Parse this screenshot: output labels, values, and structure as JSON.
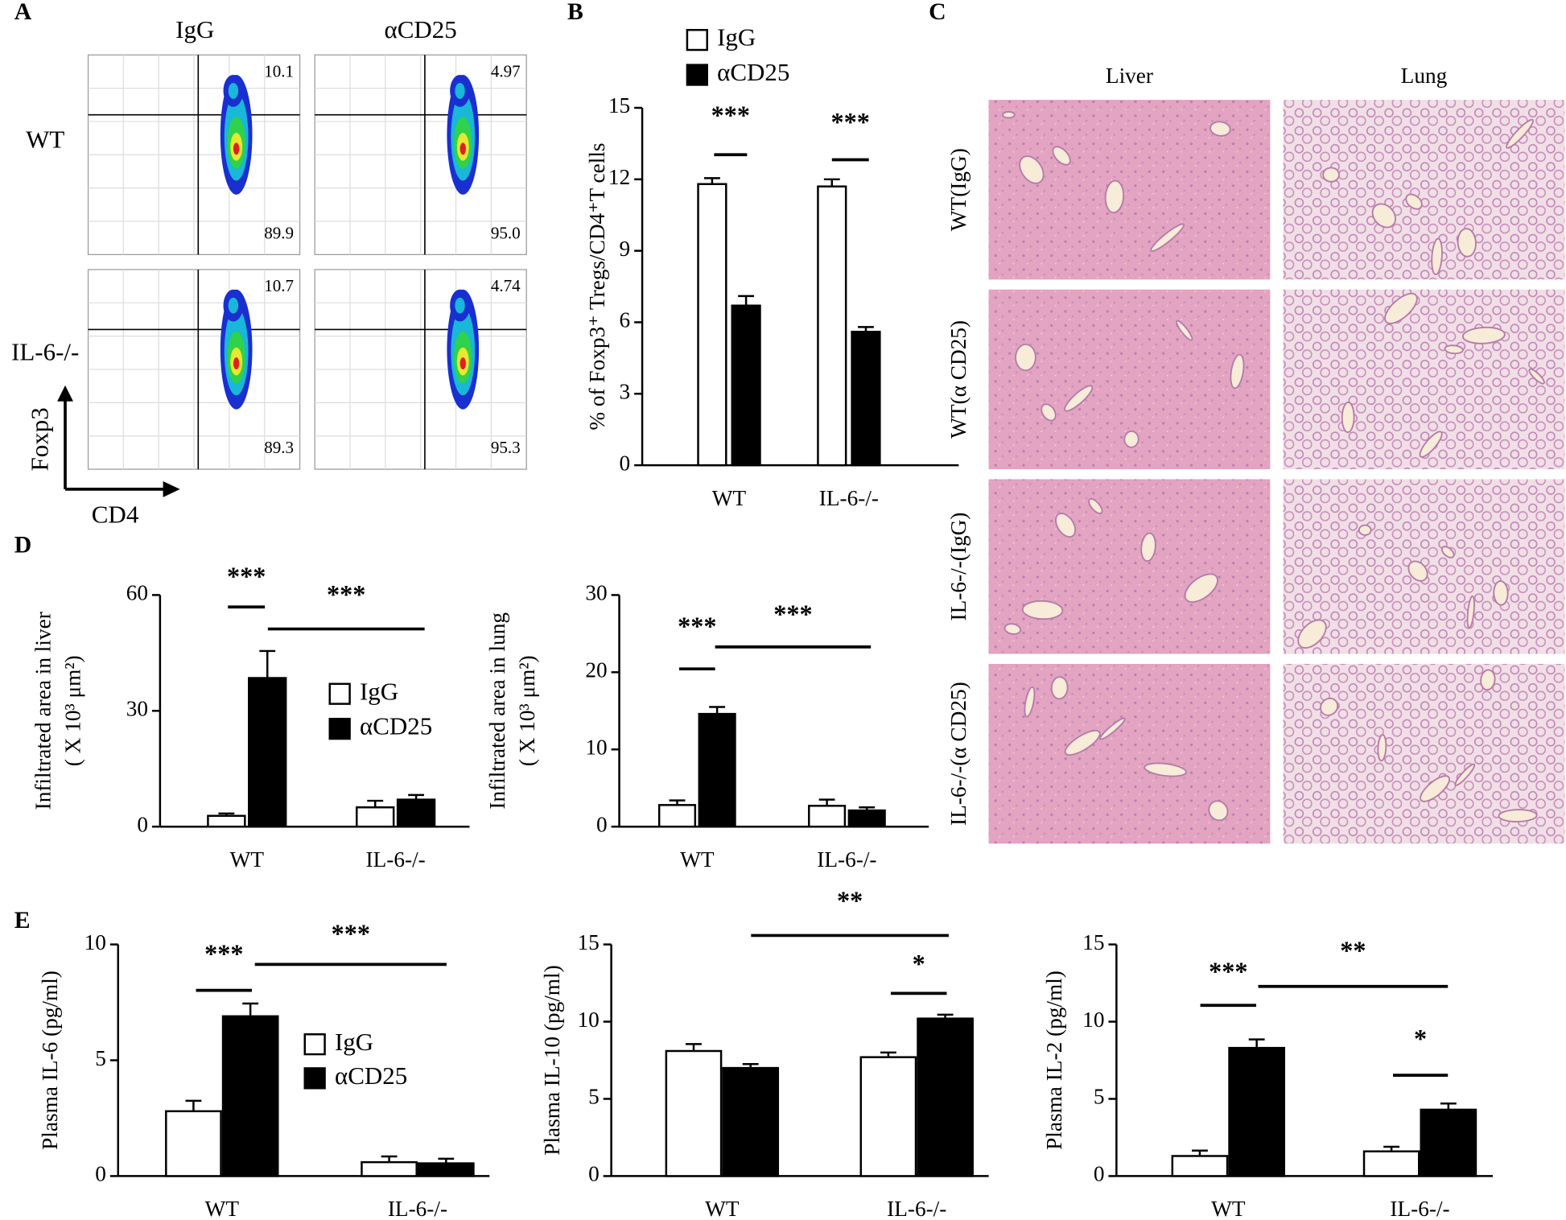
{
  "panel_labels": [
    "A",
    "B",
    "C",
    "D",
    "E"
  ],
  "flow": {
    "columns": [
      "IgG",
      "αCD25"
    ],
    "rows": [
      "WT",
      "IL-6-/-"
    ],
    "y_axis": "Foxp3",
    "x_axis": "CD4",
    "quadrants": [
      [
        "10.1",
        "89.9"
      ],
      [
        "4.97",
        "95.0"
      ],
      [
        "10.7",
        "89.3"
      ],
      [
        "4.74",
        "95.3"
      ]
    ]
  },
  "histology": {
    "columns": [
      "Liver",
      "Lung"
    ],
    "rows": [
      "WT(IgG)",
      "WT(α CD25)",
      "IL-6-/-(IgG)",
      "IL-6-/-(α CD25)"
    ]
  },
  "chart_data": [
    {
      "type": "bar",
      "ylabel": "% of Foxp3⁺ Tregs/CD4⁺T cells",
      "categories": [
        "WT",
        "IL-6-/-"
      ],
      "series": [
        {
          "name": "IgG",
          "color": "#ffffff",
          "values": [
            11.8,
            11.7
          ],
          "errors": [
            0.25,
            0.3
          ]
        },
        {
          "name": "αCD25",
          "color": "#000000",
          "values": [
            6.7,
            5.6
          ],
          "errors": [
            0.4,
            0.2
          ]
        }
      ],
      "ylim": [
        0,
        15
      ],
      "yticks": [
        0,
        3,
        6,
        9,
        12,
        15
      ],
      "legend": true,
      "annotations": [
        "***",
        "***"
      ]
    },
    {
      "type": "bar",
      "ylabel": "Infiltrated area in liver",
      "ylabel2": "( X 10³ μm²)",
      "categories": [
        "WT",
        "IL-6-/-"
      ],
      "series": [
        {
          "name": "IgG",
          "color": "#ffffff",
          "values": [
            2.8,
            5
          ],
          "errors": [
            0.6,
            1.7
          ]
        },
        {
          "name": "αCD25",
          "color": "#000000",
          "values": [
            38.5,
            7
          ],
          "errors": [
            7,
            1.2
          ]
        }
      ],
      "ylim": [
        0,
        60
      ],
      "yticks": [
        0,
        30,
        60
      ],
      "legend": true,
      "annotations": [
        "***",
        "***"
      ]
    },
    {
      "type": "bar",
      "ylabel": "Infiltrated area in lung",
      "ylabel2": "( X 10³ μm²)",
      "categories": [
        "WT",
        "IL-6-/-"
      ],
      "series": [
        {
          "color": "#ffffff",
          "values": [
            2.8,
            2.7
          ],
          "errors": [
            0.6,
            0.8
          ]
        },
        {
          "color": "#000000",
          "values": [
            14.6,
            2.1
          ],
          "errors": [
            0.9,
            0.4
          ]
        }
      ],
      "ylim": [
        0,
        30
      ],
      "yticks": [
        0,
        10,
        20,
        30
      ],
      "legend": false,
      "annotations": [
        "***",
        "***"
      ]
    },
    {
      "type": "bar",
      "ylabel": "Plasma IL-6 (pg/ml)",
      "categories": [
        "WT",
        "IL-6-/-"
      ],
      "series": [
        {
          "name": "IgG",
          "color": "#ffffff",
          "values": [
            2.8,
            0.6
          ],
          "errors": [
            0.45,
            0.25
          ]
        },
        {
          "name": "αCD25",
          "color": "#000000",
          "values": [
            6.9,
            0.55
          ],
          "errors": [
            0.55,
            0.2
          ]
        }
      ],
      "ylim": [
        0,
        10
      ],
      "yticks": [
        0,
        5,
        10
      ],
      "legend": true,
      "annotations": [
        "***",
        "***"
      ]
    },
    {
      "type": "bar",
      "ylabel": "Plasma IL-10 (pg/ml)",
      "categories": [
        "WT",
        "IL-6-/-"
      ],
      "series": [
        {
          "color": "#ffffff",
          "values": [
            8.1,
            7.7
          ],
          "errors": [
            0.45,
            0.3
          ]
        },
        {
          "color": "#000000",
          "values": [
            7.0,
            10.2
          ],
          "errors": [
            0.25,
            0.25
          ]
        }
      ],
      "ylim": [
        0,
        15
      ],
      "yticks": [
        0,
        5,
        10,
        15
      ],
      "legend": false,
      "annotations": [
        "**",
        "*"
      ]
    },
    {
      "type": "bar",
      "ylabel": "Plasma IL-2 (pg/ml)",
      "categories": [
        "WT",
        "IL-6-/-"
      ],
      "series": [
        {
          "color": "#ffffff",
          "values": [
            1.3,
            1.6
          ],
          "errors": [
            0.35,
            0.3
          ]
        },
        {
          "color": "#000000",
          "values": [
            8.3,
            4.3
          ],
          "errors": [
            0.55,
            0.4
          ]
        }
      ],
      "ylim": [
        0,
        15
      ],
      "yticks": [
        0,
        5,
        10,
        15
      ],
      "legend": false,
      "annotations": [
        "***",
        "**",
        "*"
      ]
    }
  ]
}
